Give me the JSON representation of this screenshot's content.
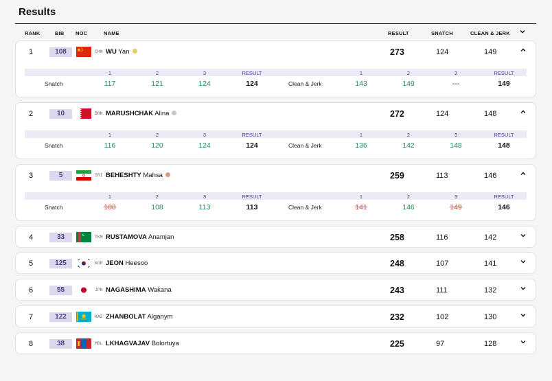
{
  "title": "Results",
  "columns": {
    "rank": "RANK",
    "bib": "BIB",
    "noc": "NOC",
    "name": "NAME",
    "result": "RESULT",
    "snatch": "SNATCH",
    "cj": "CLEAN & JERK"
  },
  "attempt_headers": {
    "a1": "1",
    "a2": "2",
    "a3": "3",
    "result": "RESULT"
  },
  "lift_labels": {
    "snatch": "Snatch",
    "cj": "Clean & Jerk"
  },
  "athletes": [
    {
      "rank": "1",
      "bib": "108",
      "noc": "CHN",
      "surname": "WU",
      "given": "Yan",
      "medal": "gold",
      "result": "273",
      "snatch": "124",
      "cj": "149",
      "chevron": "^",
      "sn": [
        "117",
        "121",
        "124"
      ],
      "sn_result": "124",
      "cjs": [
        "143",
        "149",
        "---"
      ],
      "cj_result": "149"
    },
    {
      "rank": "2",
      "bib": "10",
      "noc": "BRN",
      "surname": "MARUSHCHAK",
      "given": "Alina",
      "medal": "silver",
      "result": "272",
      "snatch": "124",
      "cj": "148",
      "chevron": "^",
      "sn": [
        "116",
        "120",
        "124"
      ],
      "sn_result": "124",
      "cjs": [
        "136",
        "142",
        "148"
      ],
      "cj_result": "148"
    },
    {
      "rank": "3",
      "bib": "5",
      "noc": "IRI",
      "surname": "BEHESHTY",
      "given": "Mahsa",
      "medal": "bronze",
      "result": "259",
      "snatch": "113",
      "cj": "146",
      "chevron": "^",
      "sn": [
        "108",
        "108",
        "113"
      ],
      "sn_result": "113",
      "cjs": [
        "141",
        "146",
        "149"
      ],
      "cj_result": "146"
    },
    {
      "rank": "4",
      "bib": "33",
      "noc": "TKM",
      "surname": "RUSTAMOVA",
      "given": "Anamjan",
      "result": "258",
      "snatch": "116",
      "cj": "142",
      "chevron": "v"
    },
    {
      "rank": "5",
      "bib": "125",
      "noc": "KOR",
      "surname": "JEON",
      "given": "Heesoo",
      "result": "248",
      "snatch": "107",
      "cj": "141",
      "chevron": "v"
    },
    {
      "rank": "6",
      "bib": "55",
      "noc": "JPN",
      "surname": "NAGASHIMA",
      "given": "Wakana",
      "result": "243",
      "snatch": "111",
      "cj": "132",
      "chevron": "v"
    },
    {
      "rank": "7",
      "bib": "122",
      "noc": "KAZ",
      "surname": "ZHANBOLAT",
      "given": "Alganym",
      "result": "232",
      "snatch": "102",
      "cj": "130",
      "chevron": "v"
    },
    {
      "rank": "8",
      "bib": "38",
      "noc": "MGL",
      "surname": "LKHAGVAJAV",
      "given": "Bolortuya",
      "result": "225",
      "snatch": "97",
      "cj": "128",
      "chevron": "v"
    }
  ],
  "attempt_status": {
    "colors": {
      "good": "#1e8a57",
      "fail": "#d5573e",
      "none": "#222222"
    },
    "athlete_3_snatch": [
      "fail",
      "good",
      "good"
    ],
    "athlete_3_cj": [
      "fail",
      "good",
      "fail"
    ],
    "athlete_1_cj": [
      "good",
      "good",
      "none"
    ]
  },
  "medal_colors": {
    "gold": "#e9cc6a",
    "silver": "#c8c8c8",
    "bronze": "#dd9a7c"
  },
  "accent": {
    "bib_bg": "#ddd7ee",
    "bib_text": "#4a3f88"
  }
}
